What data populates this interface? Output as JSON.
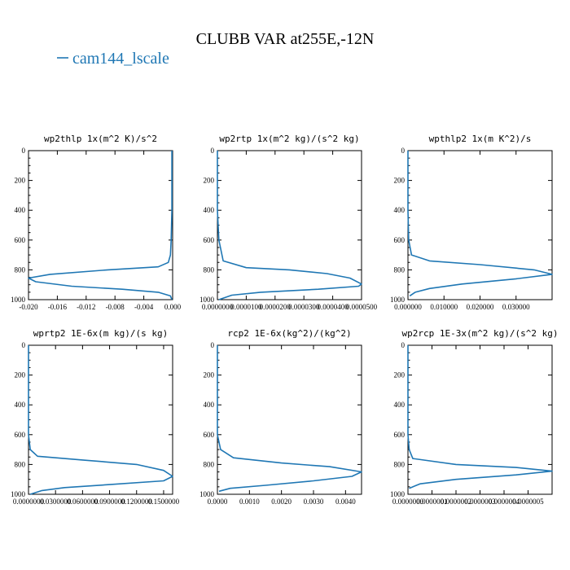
{
  "title": "CLUBB VAR at255E,-12N",
  "legend": {
    "label": "cam144_lscale",
    "color": "#1f77b4"
  },
  "chart_data": [
    {
      "type": "line",
      "title": "wp2thlp  1x(m^2 K)/s^2",
      "xlim": [
        -0.02,
        0.0
      ],
      "ylim": [
        1000,
        0
      ],
      "xticks": [
        "-0.020",
        "-0.016",
        "-0.012",
        "-0.008",
        "-0.004",
        "0.000"
      ],
      "xtick_values": [
        -0.02,
        -0.016,
        -0.012,
        -0.008,
        -0.004,
        0.0
      ],
      "yticks": [
        "0",
        "200",
        "400",
        "600",
        "800",
        "1000"
      ],
      "ytick_values": [
        0,
        200,
        400,
        600,
        800,
        1000
      ],
      "series": [
        {
          "name": "cam144_lscale",
          "color": "#1f77b4",
          "x": [
            -0.0001,
            -0.0001,
            -0.0001,
            -0.0002,
            -0.0003,
            -0.0006,
            -0.002,
            -0.009,
            -0.017,
            -0.02,
            -0.019,
            -0.014,
            -0.007,
            -0.002,
            -0.0003,
            -0.0001
          ],
          "y": [
            0,
            200,
            400,
            600,
            700,
            750,
            780,
            800,
            830,
            855,
            880,
            910,
            930,
            950,
            975,
            1000
          ]
        }
      ]
    },
    {
      "type": "line",
      "title": "wp2rtp  1x(m^2 kg)/(s^2 kg)",
      "xlim": [
        0.0,
        5e-05
      ],
      "ylim": [
        1000,
        0
      ],
      "xticks": [
        "0.0000000",
        "0.0000100",
        "0.0000200",
        "0.0000300",
        "0.0000400",
        "0.0000500"
      ],
      "xtick_values": [
        0.0,
        1e-05,
        2e-05,
        3e-05,
        4e-05,
        5e-05
      ],
      "yticks": [
        "0",
        "200",
        "400",
        "600",
        "800",
        "1000"
      ],
      "ytick_values": [
        0,
        200,
        400,
        600,
        800,
        1000
      ],
      "series": [
        {
          "name": "cam144_lscale",
          "color": "#1f77b4",
          "x": [
            0.0,
            0.0,
            0.0,
            5e-07,
            2e-06,
            1e-05,
            2.5e-05,
            3.8e-05,
            4.6e-05,
            5e-05,
            4.9e-05,
            3.5e-05,
            1.5e-05,
            5e-06,
            5e-07
          ],
          "y": [
            0,
            200,
            400,
            600,
            740,
            785,
            800,
            825,
            855,
            895,
            910,
            930,
            950,
            970,
            1000
          ]
        }
      ]
    },
    {
      "type": "line",
      "title": "wpthlp2  1x(m K^2)/s",
      "xlim": [
        0.0,
        0.04
      ],
      "ylim": [
        1000,
        0
      ],
      "xticks": [
        "0.000000",
        "0.010000",
        "0.020000",
        "0.030000"
      ],
      "xtick_values": [
        0.0,
        0.01,
        0.02,
        0.03
      ],
      "yticks": [
        "0",
        "200",
        "400",
        "600",
        "800",
        "1000"
      ],
      "ytick_values": [
        0,
        200,
        400,
        600,
        800,
        1000
      ],
      "series": [
        {
          "name": "cam144_lscale",
          "color": "#1f77b4",
          "x": [
            0.0,
            0.0,
            0.0,
            0.0002,
            0.001,
            0.006,
            0.02,
            0.035,
            0.04,
            0.03,
            0.015,
            0.006,
            0.002,
            0.0005
          ],
          "y": [
            0,
            200,
            400,
            600,
            700,
            740,
            765,
            800,
            830,
            860,
            895,
            925,
            950,
            975
          ]
        }
      ]
    },
    {
      "type": "line",
      "title": "wprtp2  1E-6x(m kg)/(s kg)",
      "xlim": [
        0.0,
        0.16
      ],
      "ylim": [
        1000,
        0
      ],
      "xticks": [
        "0.0000000",
        "0.0300000",
        "0.0600000",
        "0.0900000",
        "0.1200000",
        "0.1500000"
      ],
      "xtick_values": [
        0.0,
        0.03,
        0.06,
        0.09,
        0.12,
        0.15
      ],
      "yticks": [
        "0",
        "200",
        "400",
        "600",
        "800",
        "1000"
      ],
      "ytick_values": [
        0,
        200,
        400,
        600,
        800,
        1000
      ],
      "series": [
        {
          "name": "cam144_lscale",
          "color": "#1f77b4",
          "x": [
            0.0,
            0.0,
            0.0,
            0.0,
            0.002,
            0.01,
            0.06,
            0.12,
            0.15,
            0.16,
            0.15,
            0.09,
            0.04,
            0.015,
            0.002
          ],
          "y": [
            0,
            200,
            400,
            600,
            700,
            745,
            770,
            800,
            840,
            880,
            910,
            935,
            955,
            975,
            1000
          ]
        }
      ]
    },
    {
      "type": "line",
      "title": "rcp2  1E-6x(kg^2)/(kg^2)",
      "xlim": [
        0.0,
        0.0045
      ],
      "ylim": [
        1000,
        0
      ],
      "xticks": [
        "0.0000",
        "0.0010",
        "0.0020",
        "0.0030",
        "0.0040"
      ],
      "xtick_values": [
        0.0,
        0.001,
        0.002,
        0.003,
        0.004
      ],
      "yticks": [
        "0",
        "200",
        "400",
        "600",
        "800",
        "1000"
      ],
      "ytick_values": [
        0,
        200,
        400,
        600,
        800,
        1000
      ],
      "series": [
        {
          "name": "cam144_lscale",
          "color": "#1f77b4",
          "x": [
            0.0,
            0.0,
            0.0,
            0.0,
            0.0001,
            0.0005,
            0.002,
            0.0035,
            0.0045,
            0.0042,
            0.003,
            0.0015,
            0.0004,
            5e-05
          ],
          "y": [
            0,
            200,
            400,
            600,
            700,
            755,
            790,
            815,
            850,
            880,
            910,
            940,
            960,
            980
          ]
        }
      ]
    },
    {
      "type": "line",
      "title": "wp2rcp  1E-3x(m^2 kg)/(s^2 kg)",
      "xlim": [
        0.0,
        6e-07
      ],
      "ylim": [
        1000,
        0
      ],
      "xticks": [
        "0.0000000",
        "0.0000001",
        "0.0000002",
        "0.0000003",
        "0.0000004",
        "0.0000005"
      ],
      "xtick_values": [
        0.0,
        1e-07,
        2e-07,
        3e-07,
        4e-07,
        5e-07
      ],
      "yticks": [
        "0",
        "200",
        "400",
        "600",
        "800",
        "1000"
      ],
      "ytick_values": [
        0,
        200,
        400,
        600,
        800,
        1000
      ],
      "series": [
        {
          "name": "cam144_lscale",
          "color": "#1f77b4",
          "x": [
            0.0,
            0.0,
            0.0,
            0.0,
            5e-09,
            2e-08,
            2e-07,
            4.5e-07,
            6e-07,
            4.5e-07,
            2e-07,
            5e-08,
            5e-09
          ],
          "y": [
            0,
            200,
            400,
            600,
            700,
            760,
            800,
            820,
            845,
            870,
            900,
            930,
            960
          ]
        }
      ]
    }
  ]
}
